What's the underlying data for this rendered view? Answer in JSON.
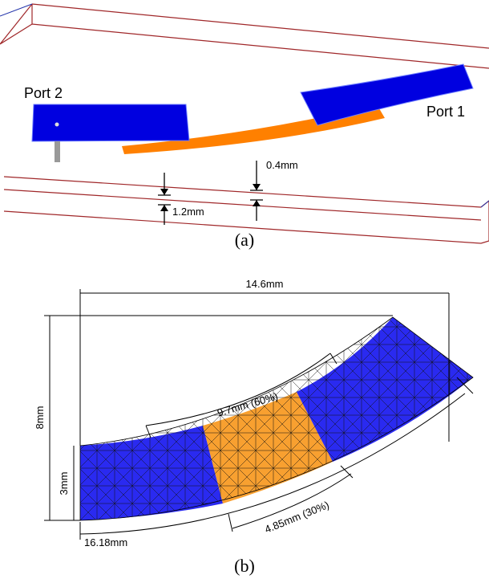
{
  "figure_a": {
    "port2": "Port 2",
    "port1": "Port 1",
    "gap": "0.4mm",
    "height": "1.2mm",
    "caption": "(a)"
  },
  "figure_b": {
    "width": "14.6mm",
    "total_height": "8mm",
    "strip_width": "3mm",
    "arc_60": "9.7mm (60%)",
    "arc_30": "4.85mm (30%)",
    "inner_arc": "16.18mm",
    "caption": "(b)"
  }
}
